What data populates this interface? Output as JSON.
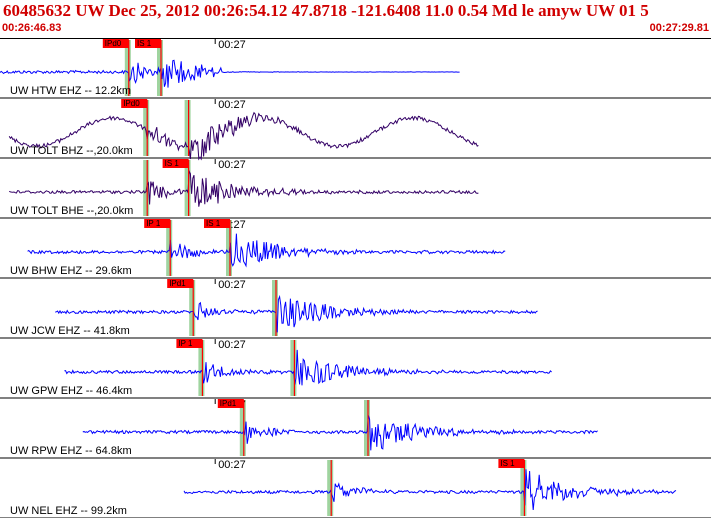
{
  "header": {
    "title": "60485632 UW Dec 25, 2012 00:26:54.12    47.8718 -121.6408 11.0 0.54 Md le amyw UW 01    5",
    "start_time": "00:26:46.83",
    "end_time": "00:27:29.81"
  },
  "time_tick_label": "00:27",
  "traces": [
    {
      "label": "UW HTW EHZ -- 12.2km",
      "color": "#0000ff",
      "t_start": 0,
      "t_end": 100,
      "p_pick": 28,
      "p_label": "IPd0",
      "s_pick": 35,
      "s_label": "IS 1",
      "amp": "high-short"
    },
    {
      "label": "UW TOLT BHZ --,20.0km",
      "color": "#330066",
      "t_start": 2,
      "t_end": 104,
      "p_pick": 32,
      "p_label": "IPd0",
      "s_pick": 41,
      "s_label": "",
      "amp": "wave"
    },
    {
      "label": "UW TOLT BHE --,20.0km",
      "color": "#330066",
      "t_start": 2,
      "t_end": 104,
      "p_pick": 32,
      "p_label": "",
      "s_pick": 41,
      "s_label": "IS 1",
      "amp": "medium"
    },
    {
      "label": "UW BHW EHZ -- 29.6km",
      "color": "#0000ff",
      "t_start": 6,
      "t_end": 110,
      "p_pick": 37,
      "p_label": "IP 1",
      "s_pick": 50,
      "s_label": "IS 1",
      "amp": "medium"
    },
    {
      "label": "UW JCW EHZ -- 41.8km",
      "color": "#0000ff",
      "t_start": 12,
      "t_end": 117,
      "p_pick": 42,
      "p_label": "IPd1",
      "s_pick": 60,
      "s_label": "",
      "amp": "medium"
    },
    {
      "label": "UW GPW EHZ -- 46.4km",
      "color": "#0000ff",
      "t_start": 14,
      "t_end": 120,
      "p_pick": 44,
      "p_label": "IP 1",
      "s_pick": 64,
      "s_label": "",
      "amp": "medium"
    },
    {
      "label": "UW RPW EHZ -- 64.8km",
      "color": "#0000ff",
      "t_start": 18,
      "t_end": 130,
      "p_pick": 53,
      "p_label": "IPd1",
      "s_pick": 80,
      "s_label": "",
      "amp": "medium"
    },
    {
      "label": "UW NEL EHZ -- 99.2km",
      "color": "#0000ff",
      "t_start": 40,
      "t_end": 147,
      "p_pick": 72,
      "p_label": "",
      "s_pick": 114,
      "s_label": "IS 1",
      "amp": "low"
    }
  ],
  "colors": {
    "red": "#ff0000",
    "green_band": "#9fd49f",
    "trace_blue": "#0000ff",
    "trace_purple": "#330066"
  }
}
